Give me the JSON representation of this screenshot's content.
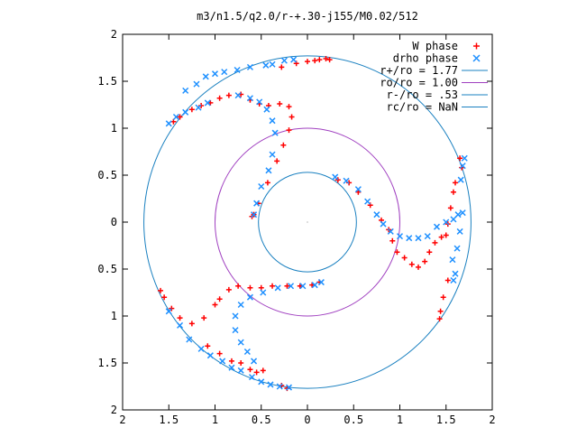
{
  "chart_data": {
    "type": "scatter",
    "title": "m3/n1.5/q2.0/r-+.30-j155/M0.02/512",
    "xlim": [
      -2,
      2
    ],
    "ylim": [
      -2,
      2
    ],
    "x_ticks": [
      -2,
      -1.5,
      -1,
      -0.5,
      0,
      0.5,
      1,
      1.5,
      2
    ],
    "x_tick_labels": [
      "2",
      "1.5",
      "1",
      "0.5",
      "0",
      "0.5",
      "1",
      "1.5",
      "2"
    ],
    "y_ticks": [
      2,
      1.5,
      1,
      0.5,
      0,
      -0.5,
      -1,
      -1.5,
      -2
    ],
    "y_tick_labels": [
      "2",
      "1.5",
      "1",
      "0.5",
      "0",
      "0.5",
      "1",
      "1.5",
      "2"
    ],
    "grid": false,
    "legend_position": "top-right",
    "colors": {
      "w_phase": "#ff0000",
      "drho_phase": "#1e90ff",
      "r_plus": "#1a80c0",
      "r_o": "#a040c0",
      "r_minus": "#1a80c0"
    },
    "series": [
      {
        "name": "W phase",
        "marker": "+",
        "points": [
          [
            -1.45,
            1.07
          ],
          [
            -1.38,
            1.12
          ],
          [
            -1.25,
            1.2
          ],
          [
            -1.15,
            1.24
          ],
          [
            -1.05,
            1.27
          ],
          [
            -0.95,
            1.32
          ],
          [
            -0.85,
            1.35
          ],
          [
            -0.72,
            1.36
          ],
          [
            -0.62,
            1.3
          ],
          [
            -0.52,
            1.26
          ],
          [
            -0.42,
            1.24
          ],
          [
            -0.3,
            1.26
          ],
          [
            -0.2,
            1.23
          ],
          [
            -0.17,
            1.12
          ],
          [
            -0.2,
            0.98
          ],
          [
            -0.26,
            0.82
          ],
          [
            -0.33,
            0.65
          ],
          [
            -0.43,
            0.42
          ],
          [
            -0.53,
            0.2
          ],
          [
            -0.58,
            0.08
          ],
          [
            -0.6,
            0.06
          ],
          [
            -0.28,
            1.65
          ],
          [
            -0.12,
            1.69
          ],
          [
            0.0,
            1.71
          ],
          [
            0.08,
            1.72
          ],
          [
            0.13,
            1.73
          ],
          [
            0.2,
            1.74
          ],
          [
            0.24,
            1.73
          ],
          [
            0.33,
            0.45
          ],
          [
            0.45,
            0.42
          ],
          [
            0.55,
            0.32
          ],
          [
            0.68,
            0.18
          ],
          [
            0.8,
            0.02
          ],
          [
            0.88,
            -0.08
          ],
          [
            0.92,
            -0.2
          ],
          [
            0.97,
            -0.32
          ],
          [
            1.05,
            -0.38
          ],
          [
            1.13,
            -0.45
          ],
          [
            1.2,
            -0.48
          ],
          [
            1.27,
            -0.42
          ],
          [
            1.32,
            -0.32
          ],
          [
            1.38,
            -0.22
          ],
          [
            1.45,
            -0.16
          ],
          [
            1.5,
            -0.14
          ],
          [
            1.52,
            -0.02
          ],
          [
            1.55,
            0.15
          ],
          [
            1.58,
            0.32
          ],
          [
            1.6,
            0.42
          ],
          [
            1.67,
            0.58
          ],
          [
            1.65,
            0.68
          ],
          [
            1.52,
            -0.62
          ],
          [
            1.47,
            -0.8
          ],
          [
            1.44,
            -0.95
          ],
          [
            1.43,
            -1.03
          ],
          [
            -1.59,
            -0.73
          ],
          [
            -1.55,
            -0.8
          ],
          [
            -1.47,
            -0.92
          ],
          [
            -1.38,
            -1.02
          ],
          [
            -1.25,
            -1.08
          ],
          [
            -1.12,
            -1.02
          ],
          [
            -1.0,
            -0.88
          ],
          [
            -0.95,
            -0.82
          ],
          [
            -0.85,
            -0.72
          ],
          [
            -0.75,
            -0.68
          ],
          [
            -0.62,
            -0.7
          ],
          [
            -0.5,
            -0.7
          ],
          [
            -0.38,
            -0.68
          ],
          [
            -0.22,
            -0.68
          ],
          [
            -0.08,
            -0.68
          ],
          [
            0.05,
            -0.67
          ],
          [
            0.13,
            -0.64
          ],
          [
            -1.08,
            -1.32
          ],
          [
            -0.95,
            -1.4
          ],
          [
            -0.82,
            -1.48
          ],
          [
            -0.72,
            -1.5
          ],
          [
            -0.62,
            -1.57
          ],
          [
            -0.55,
            -1.6
          ],
          [
            -0.48,
            -1.58
          ],
          [
            -0.28,
            -1.74
          ],
          [
            -0.22,
            -1.77
          ]
        ]
      },
      {
        "name": "drho phase",
        "marker": "x",
        "points": [
          [
            -1.5,
            1.05
          ],
          [
            -1.42,
            1.12
          ],
          [
            -1.32,
            1.17
          ],
          [
            -1.18,
            1.22
          ],
          [
            -1.08,
            1.27
          ],
          [
            -1.32,
            1.4
          ],
          [
            -1.2,
            1.47
          ],
          [
            -1.1,
            1.55
          ],
          [
            -1.0,
            1.58
          ],
          [
            -0.9,
            1.6
          ],
          [
            -0.76,
            1.62
          ],
          [
            -0.62,
            1.65
          ],
          [
            -0.45,
            1.67
          ],
          [
            -0.38,
            1.68
          ],
          [
            -0.25,
            1.72
          ],
          [
            -0.15,
            1.73
          ],
          [
            -0.75,
            1.35
          ],
          [
            -0.62,
            1.32
          ],
          [
            -0.52,
            1.28
          ],
          [
            -0.44,
            1.2
          ],
          [
            -0.38,
            1.08
          ],
          [
            -0.35,
            0.95
          ],
          [
            -0.38,
            0.72
          ],
          [
            -0.42,
            0.55
          ],
          [
            -0.5,
            0.38
          ],
          [
            -0.55,
            0.2
          ],
          [
            -0.58,
            0.08
          ],
          [
            0.3,
            0.48
          ],
          [
            0.42,
            0.44
          ],
          [
            0.55,
            0.35
          ],
          [
            0.65,
            0.22
          ],
          [
            0.75,
            0.08
          ],
          [
            0.82,
            -0.02
          ],
          [
            0.9,
            -0.1
          ],
          [
            1.0,
            -0.15
          ],
          [
            1.1,
            -0.17
          ],
          [
            1.2,
            -0.17
          ],
          [
            1.3,
            -0.15
          ],
          [
            1.4,
            -0.05
          ],
          [
            1.5,
            0.0
          ],
          [
            1.58,
            0.03
          ],
          [
            1.63,
            0.08
          ],
          [
            1.66,
            0.45
          ],
          [
            1.68,
            0.6
          ],
          [
            1.7,
            0.68
          ],
          [
            1.68,
            0.1
          ],
          [
            1.65,
            -0.1
          ],
          [
            1.62,
            -0.28
          ],
          [
            1.57,
            -0.4
          ],
          [
            1.6,
            -0.55
          ],
          [
            1.58,
            -0.62
          ],
          [
            -1.5,
            -0.95
          ],
          [
            -1.38,
            -1.1
          ],
          [
            -1.28,
            -1.25
          ],
          [
            -1.15,
            -1.35
          ],
          [
            -1.05,
            -1.42
          ],
          [
            -0.92,
            -1.48
          ],
          [
            -0.82,
            -1.55
          ],
          [
            -0.72,
            -1.58
          ],
          [
            -0.6,
            -1.65
          ],
          [
            -0.5,
            -1.7
          ],
          [
            -0.4,
            -1.73
          ],
          [
            -0.3,
            -1.75
          ],
          [
            -0.2,
            -1.76
          ],
          [
            -0.58,
            -1.48
          ],
          [
            -0.65,
            -1.38
          ],
          [
            -0.72,
            -1.28
          ],
          [
            -0.78,
            -1.15
          ],
          [
            -0.78,
            -1.0
          ],
          [
            -0.72,
            -0.88
          ],
          [
            -0.62,
            -0.8
          ],
          [
            -0.48,
            -0.75
          ],
          [
            -0.32,
            -0.7
          ],
          [
            -0.18,
            -0.68
          ],
          [
            -0.05,
            -0.68
          ],
          [
            0.08,
            -0.67
          ],
          [
            0.15,
            -0.64
          ]
        ]
      }
    ],
    "circles": [
      {
        "label": "r+/ro = 1.77",
        "radius": 1.77,
        "color_key": "r_plus"
      },
      {
        "label": "ro/ro = 1.00",
        "radius": 1.0,
        "color_key": "r_o"
      },
      {
        "label": "r-/ro = .53",
        "radius": 0.53,
        "color_key": "r_minus"
      },
      {
        "label": "rc/ro = NaN",
        "radius": null,
        "color_key": "r_plus"
      }
    ]
  }
}
